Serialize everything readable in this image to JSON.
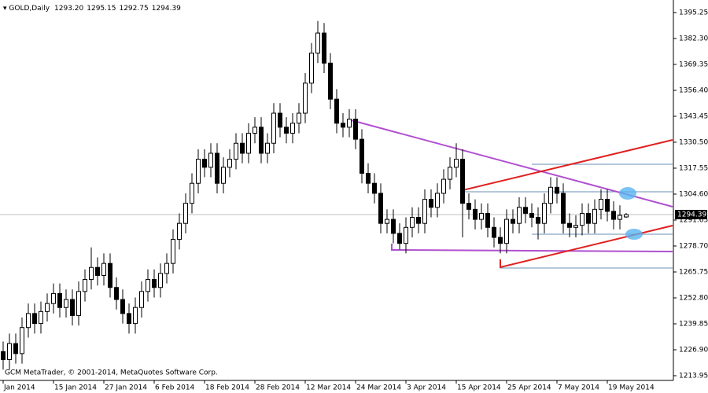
{
  "chart_data": {
    "type": "candlestick",
    "title": "GOLD,Daily",
    "header": [
      "1293.20",
      "1295.15",
      "1292.75",
      "1294.39"
    ],
    "footer": "GCM MetaTrader, © 2001-2014, MetaQuotes Software Corp.",
    "categories": [
      "Jan 2014",
      null,
      null,
      null,
      null,
      null,
      null,
      null,
      "15 Jan 2014",
      null,
      null,
      null,
      null,
      null,
      null,
      null,
      "27 Jan 2014",
      null,
      null,
      null,
      null,
      null,
      null,
      null,
      "6 Feb 2014",
      null,
      null,
      null,
      null,
      null,
      null,
      null,
      "18 Feb 2014",
      null,
      null,
      null,
      null,
      null,
      null,
      null,
      "28 Feb 2014",
      null,
      null,
      null,
      null,
      null,
      null,
      null,
      "12 Mar 2014",
      null,
      null,
      null,
      null,
      null,
      null,
      null,
      "24 Mar 2014",
      null,
      null,
      null,
      null,
      null,
      null,
      null,
      "3 Apr 2014",
      null,
      null,
      null,
      null,
      null,
      null,
      null,
      "15 Apr 2014",
      null,
      null,
      null,
      null,
      null,
      null,
      null,
      "25 Apr 2014",
      null,
      null,
      null,
      null,
      null,
      null,
      null,
      "7 May 2014",
      null,
      null,
      null,
      null,
      null,
      null,
      null,
      "19 May 2014",
      null,
      null,
      null
    ],
    "open": [
      1226,
      1222,
      1230,
      1225,
      1238,
      1245,
      1240,
      1246,
      1250,
      1255,
      1248,
      1252,
      1244,
      1256,
      1262,
      1268,
      1264,
      1270,
      1258,
      1252,
      1245,
      1240,
      1248,
      1256,
      1262,
      1258,
      1265,
      1270,
      1282,
      1290,
      1300,
      1310,
      1322,
      1318,
      1325,
      1310,
      1318,
      1322,
      1330,
      1325,
      1335,
      1338,
      1325,
      1330,
      1345,
      1338,
      1335,
      1340,
      1345,
      1360,
      1375,
      1385,
      1370,
      1352,
      1340,
      1338,
      1342,
      1332,
      1315,
      1310,
      1305,
      1290,
      1292,
      1285,
      1280,
      1288,
      1293,
      1290,
      1302,
      1298,
      1305,
      1312,
      1318,
      1322,
      1300,
      1297,
      1292,
      1295,
      1288,
      1283,
      1280,
      1292,
      1290,
      1298,
      1295,
      1293,
      1290,
      1300,
      1308,
      1305,
      1290,
      1288,
      1289,
      1295,
      1290,
      1297,
      1302,
      1296,
      1292,
      1293.2
    ],
    "high": [
      1231,
      1235,
      1235,
      1243,
      1250,
      1250,
      1251,
      1255,
      1260,
      1260,
      1257,
      1257,
      1261,
      1267,
      1278,
      1273,
      1275,
      1275,
      1263,
      1257,
      1250,
      1253,
      1261,
      1267,
      1267,
      1270,
      1275,
      1287,
      1295,
      1305,
      1315,
      1327,
      1327,
      1330,
      1330,
      1323,
      1327,
      1335,
      1335,
      1340,
      1343,
      1343,
      1335,
      1350,
      1350,
      1343,
      1345,
      1350,
      1365,
      1380,
      1391,
      1390,
      1375,
      1357,
      1345,
      1347,
      1347,
      1337,
      1320,
      1315,
      1310,
      1297,
      1297,
      1290,
      1293,
      1298,
      1298,
      1307,
      1307,
      1310,
      1317,
      1323,
      1330,
      1327,
      1305,
      1302,
      1300,
      1300,
      1293,
      1288,
      1297,
      1297,
      1303,
      1303,
      1300,
      1298,
      1305,
      1313,
      1313,
      1310,
      1295,
      1294,
      1300,
      1300,
      1302,
      1307,
      1307,
      1301,
      1299,
      1295.15
    ],
    "low": [
      1217,
      1217,
      1220,
      1220,
      1233,
      1235,
      1235,
      1241,
      1245,
      1243,
      1243,
      1239,
      1239,
      1251,
      1257,
      1259,
      1259,
      1253,
      1247,
      1240,
      1235,
      1235,
      1243,
      1251,
      1253,
      1253,
      1260,
      1265,
      1277,
      1285,
      1295,
      1305,
      1313,
      1313,
      1305,
      1305,
      1313,
      1317,
      1320,
      1320,
      1330,
      1320,
      1320,
      1325,
      1333,
      1330,
      1330,
      1335,
      1340,
      1355,
      1370,
      1365,
      1347,
      1335,
      1333,
      1333,
      1327,
      1310,
      1305,
      1300,
      1285,
      1285,
      1280,
      1277,
      1275,
      1283,
      1285,
      1285,
      1293,
      1293,
      1300,
      1307,
      1313,
      1283,
      1292,
      1287,
      1287,
      1283,
      1278,
      1275,
      1275,
      1285,
      1285,
      1290,
      1288,
      1282,
      1285,
      1295,
      1300,
      1285,
      1283,
      1283,
      1284,
      1285,
      1285,
      1292,
      1291,
      1287,
      1287,
      1292.75
    ],
    "close": [
      1222,
      1230,
      1225,
      1238,
      1245,
      1240,
      1246,
      1250,
      1255,
      1248,
      1252,
      1244,
      1256,
      1262,
      1268,
      1264,
      1270,
      1258,
      1252,
      1245,
      1240,
      1248,
      1256,
      1262,
      1258,
      1265,
      1270,
      1282,
      1290,
      1300,
      1310,
      1322,
      1318,
      1325,
      1310,
      1318,
      1322,
      1330,
      1325,
      1335,
      1338,
      1325,
      1330,
      1345,
      1338,
      1335,
      1340,
      1345,
      1360,
      1375,
      1385,
      1370,
      1352,
      1340,
      1338,
      1342,
      1332,
      1315,
      1310,
      1305,
      1290,
      1292,
      1285,
      1280,
      1288,
      1293,
      1290,
      1302,
      1298,
      1305,
      1312,
      1318,
      1322,
      1300,
      1297,
      1292,
      1295,
      1288,
      1283,
      1280,
      1292,
      1290,
      1298,
      1295,
      1293,
      1290,
      1300,
      1308,
      1305,
      1290,
      1288,
      1289,
      1295,
      1290,
      1297,
      1302,
      1296,
      1292,
      1294,
      1294.39
    ],
    "current_price": {
      "value": 1294.39,
      "label": "1294.39"
    },
    "ylim": [
      1211.6,
      1401.5
    ],
    "yticks": [
      {
        "value": 1395.25,
        "label": "1395.25"
      },
      {
        "value": 1382.3,
        "label": "1382.30"
      },
      {
        "value": 1369.35,
        "label": "1369.35"
      },
      {
        "value": 1356.4,
        "label": "1356.40"
      },
      {
        "value": 1343.45,
        "label": "1343.45"
      },
      {
        "value": 1330.5,
        "label": "1330.50"
      },
      {
        "value": 1317.55,
        "label": "1317.55"
      },
      {
        "value": 1304.6,
        "label": "1304.60"
      },
      {
        "value": 1291.65,
        "label": "1291.65"
      },
      {
        "value": 1278.7,
        "label": "1278.70"
      },
      {
        "value": 1265.75,
        "label": "1265.75"
      },
      {
        "value": 1252.8,
        "label": "1252.80"
      },
      {
        "value": 1239.85,
        "label": "1239.85"
      },
      {
        "value": 1226.9,
        "label": "1226.90"
      },
      {
        "value": 1213.95,
        "label": "1213.95"
      }
    ],
    "up_color": "#ffffff",
    "down_color": "#000000",
    "outline_color": "#000000"
  }
}
